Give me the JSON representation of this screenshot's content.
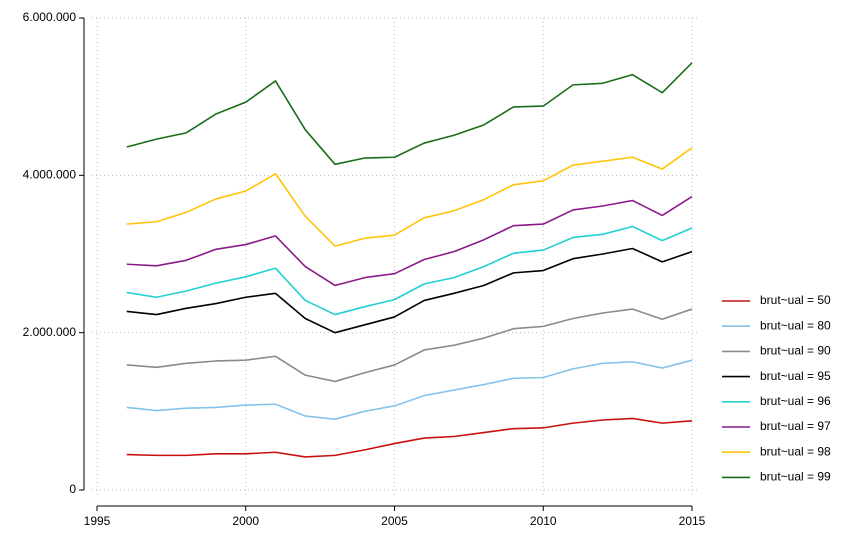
{
  "chart_data": {
    "type": "line",
    "x": [
      1996,
      1997,
      1998,
      1999,
      2000,
      2001,
      2002,
      2003,
      2004,
      2005,
      2006,
      2007,
      2008,
      2009,
      2010,
      2011,
      2012,
      2013,
      2014,
      2015
    ],
    "series": [
      {
        "name": "brut~ual = 50",
        "color": "#c81010",
        "values": [
          450000,
          440000,
          440000,
          460000,
          460000,
          480000,
          420000,
          440000,
          510000,
          590000,
          660000,
          680000,
          730000,
          780000,
          790000,
          850000,
          890000,
          910000,
          850000,
          880000
        ]
      },
      {
        "name": "brut~ual = 80",
        "color": "#86c3ea",
        "values": [
          1050000,
          1010000,
          1040000,
          1050000,
          1080000,
          1090000,
          940000,
          900000,
          1000000,
          1070000,
          1200000,
          1270000,
          1340000,
          1420000,
          1430000,
          1540000,
          1610000,
          1630000,
          1550000,
          1650000
        ]
      },
      {
        "name": "brut~ual = 90",
        "color": "#8a8a8a",
        "values": [
          1590000,
          1560000,
          1610000,
          1640000,
          1650000,
          1700000,
          1460000,
          1380000,
          1490000,
          1590000,
          1780000,
          1840000,
          1930000,
          2050000,
          2080000,
          2180000,
          2250000,
          2300000,
          2170000,
          2300000
        ]
      },
      {
        "name": "brut~ual = 95",
        "color": "#000000",
        "values": [
          2270000,
          2230000,
          2310000,
          2370000,
          2450000,
          2500000,
          2180000,
          2000000,
          2100000,
          2200000,
          2410000,
          2500000,
          2600000,
          2760000,
          2790000,
          2940000,
          3000000,
          3070000,
          2900000,
          3030000
        ]
      },
      {
        "name": "brut~ual = 96",
        "color": "#22cfd2",
        "values": [
          2510000,
          2450000,
          2530000,
          2630000,
          2710000,
          2820000,
          2410000,
          2230000,
          2330000,
          2420000,
          2620000,
          2700000,
          2840000,
          3010000,
          3050000,
          3210000,
          3250000,
          3350000,
          3170000,
          3330000
        ]
      },
      {
        "name": "brut~ual = 97",
        "color": "#8b1a8b",
        "values": [
          2870000,
          2850000,
          2920000,
          3060000,
          3120000,
          3230000,
          2840000,
          2600000,
          2700000,
          2750000,
          2930000,
          3030000,
          3180000,
          3360000,
          3380000,
          3560000,
          3610000,
          3680000,
          3490000,
          3730000
        ]
      },
      {
        "name": "brut~ual = 98",
        "color": "#ffc40a",
        "values": [
          3380000,
          3410000,
          3530000,
          3700000,
          3800000,
          4020000,
          3480000,
          3100000,
          3200000,
          3240000,
          3460000,
          3550000,
          3690000,
          3880000,
          3930000,
          4130000,
          4180000,
          4230000,
          4080000,
          4350000
        ]
      },
      {
        "name": "brut~ual = 99",
        "color": "#1a6e1a",
        "values": [
          4360000,
          4460000,
          4540000,
          4780000,
          4930000,
          5200000,
          4580000,
          4140000,
          4220000,
          4230000,
          4410000,
          4510000,
          4640000,
          4870000,
          4880000,
          5150000,
          5170000,
          5280000,
          5050000,
          5430000
        ]
      }
    ],
    "xlim": [
      1995,
      2015
    ],
    "xticks": [
      1995,
      2000,
      2005,
      2010,
      2015
    ],
    "ylim": [
      0,
      6000000
    ],
    "yticks": [
      {
        "value": 0,
        "label": "0"
      },
      {
        "value": 2000000,
        "label": "2.000.000"
      },
      {
        "value": 4000000,
        "label": "4.000.000"
      },
      {
        "value": 6000000,
        "label": "6.000.000"
      }
    ],
    "grid": true,
    "legend": "right"
  }
}
